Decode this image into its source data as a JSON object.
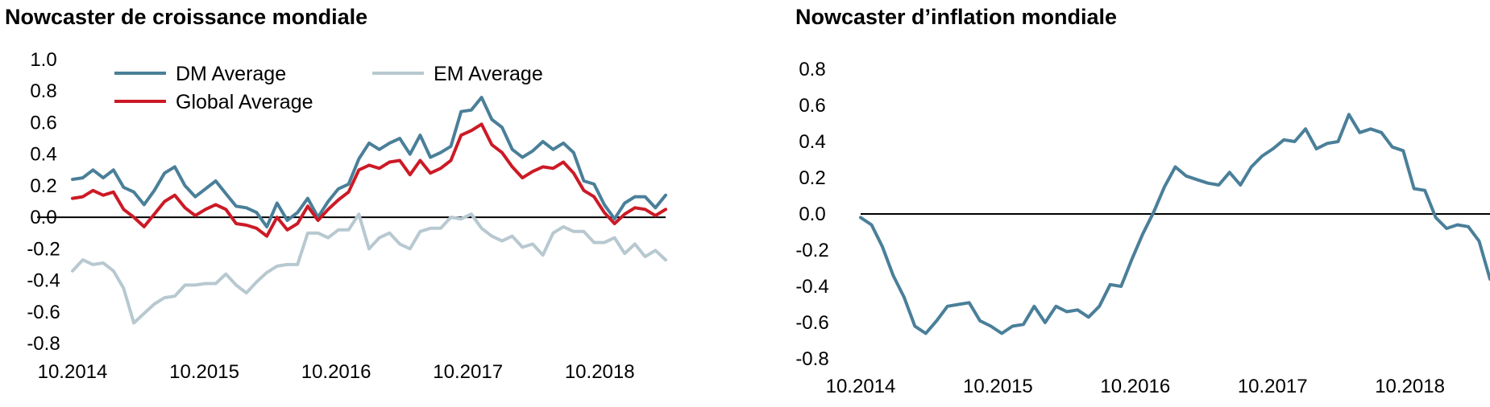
{
  "chart_data": [
    {
      "type": "line",
      "title": "Nowcaster de croissance mondiale",
      "xlabel": "",
      "ylabel": "",
      "ylim": [
        -0.8,
        1.0
      ],
      "y_ticks": [
        "1.0",
        "0.8",
        "0.6",
        "0.4",
        "0.2",
        "0.0",
        "-0.2",
        "-0.4",
        "-0.6",
        "-0.8"
      ],
      "x_ticks": [
        "10.2014",
        "10.2015",
        "10.2016",
        "10.2017",
        "10.2018"
      ],
      "x_start": "10.2014",
      "x_end": "04.2019",
      "legend_position": "top-left",
      "zero_line": true,
      "grid": false,
      "series": [
        {
          "name": "DM Average",
          "color": "#4a7f99",
          "values": [
            0.24,
            0.25,
            0.3,
            0.25,
            0.3,
            0.19,
            0.16,
            0.08,
            0.17,
            0.28,
            0.32,
            0.2,
            0.13,
            0.18,
            0.23,
            0.15,
            0.07,
            0.06,
            0.03,
            -0.06,
            0.09,
            -0.02,
            0.03,
            0.12,
            0.0,
            0.1,
            0.18,
            0.21,
            0.37,
            0.47,
            0.43,
            0.47,
            0.5,
            0.4,
            0.52,
            0.38,
            0.41,
            0.45,
            0.67,
            0.68,
            0.76,
            0.62,
            0.57,
            0.43,
            0.38,
            0.42,
            0.48,
            0.43,
            0.47,
            0.41,
            0.23,
            0.21,
            0.08,
            -0.01,
            0.09,
            0.13,
            0.13,
            0.06,
            0.14
          ]
        },
        {
          "name": "EM Average",
          "color": "#b7c8d0",
          "values": [
            -0.34,
            -0.27,
            -0.3,
            -0.29,
            -0.34,
            -0.45,
            -0.67,
            -0.61,
            -0.55,
            -0.51,
            -0.5,
            -0.43,
            -0.43,
            -0.42,
            -0.42,
            -0.36,
            -0.43,
            -0.48,
            -0.41,
            -0.35,
            -0.31,
            -0.3,
            -0.3,
            -0.1,
            -0.1,
            -0.13,
            -0.08,
            -0.08,
            0.02,
            -0.2,
            -0.13,
            -0.1,
            -0.17,
            -0.2,
            -0.09,
            -0.07,
            -0.07,
            0.0,
            -0.01,
            0.02,
            -0.07,
            -0.12,
            -0.15,
            -0.12,
            -0.19,
            -0.17,
            -0.24,
            -0.1,
            -0.06,
            -0.09,
            -0.09,
            -0.16,
            -0.16,
            -0.13,
            -0.23,
            -0.17,
            -0.25,
            -0.21,
            -0.27
          ]
        },
        {
          "name": "Global Average",
          "color": "#cc1a26",
          "values": [
            0.12,
            0.13,
            0.17,
            0.14,
            0.16,
            0.05,
            0.0,
            -0.06,
            0.02,
            0.1,
            0.14,
            0.06,
            0.01,
            0.05,
            0.08,
            0.05,
            -0.04,
            -0.05,
            -0.07,
            -0.12,
            0.0,
            -0.08,
            -0.04,
            0.07,
            -0.02,
            0.05,
            0.11,
            0.16,
            0.3,
            0.33,
            0.31,
            0.35,
            0.36,
            0.27,
            0.36,
            0.28,
            0.31,
            0.36,
            0.52,
            0.55,
            0.59,
            0.46,
            0.41,
            0.32,
            0.25,
            0.29,
            0.32,
            0.31,
            0.35,
            0.28,
            0.17,
            0.13,
            0.03,
            -0.04,
            0.02,
            0.06,
            0.05,
            0.01,
            0.05
          ]
        }
      ]
    },
    {
      "type": "line",
      "title": "Nowcaster d’inflation mondiale",
      "xlabel": "",
      "ylabel": "",
      "ylim": [
        -0.8,
        0.8
      ],
      "y_ticks": [
        "0.8",
        "0.6",
        "0.4",
        "0.2",
        "0.0",
        "-0.2",
        "-0.4",
        "-0.6",
        "-0.8"
      ],
      "x_ticks": [
        "10.2014",
        "10.2015",
        "10.2016",
        "10.2017",
        "10.2018"
      ],
      "x_start": "10.2014",
      "x_end": "05.2019",
      "legend_position": "none",
      "zero_line": true,
      "grid": false,
      "series": [
        {
          "name": "",
          "color": "#4a7f99",
          "values": [
            -0.02,
            -0.06,
            -0.18,
            -0.34,
            -0.46,
            -0.62,
            -0.66,
            -0.59,
            -0.51,
            -0.5,
            -0.49,
            -0.59,
            -0.62,
            -0.66,
            -0.62,
            -0.61,
            -0.51,
            -0.6,
            -0.51,
            -0.54,
            -0.53,
            -0.57,
            -0.51,
            -0.39,
            -0.4,
            -0.25,
            -0.11,
            0.01,
            0.15,
            0.26,
            0.21,
            0.19,
            0.17,
            0.16,
            0.23,
            0.16,
            0.26,
            0.32,
            0.36,
            0.41,
            0.4,
            0.47,
            0.36,
            0.39,
            0.4,
            0.55,
            0.45,
            0.47,
            0.45,
            0.37,
            0.35,
            0.14,
            0.13,
            -0.02,
            -0.08,
            -0.06,
            -0.07,
            -0.15,
            -0.36
          ]
        }
      ]
    }
  ]
}
